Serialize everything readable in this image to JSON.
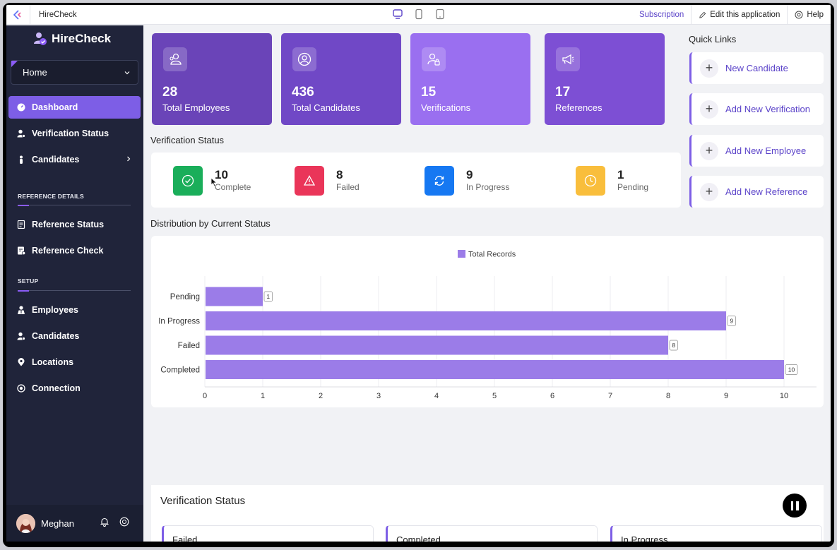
{
  "topbar": {
    "app_title": "HireCheck",
    "subscription": "Subscription",
    "edit": "Edit this application",
    "help": "Help"
  },
  "sidebar": {
    "brand": "HireCheck",
    "home": "Home",
    "items": {
      "dashboard": "Dashboard",
      "verification_status": "Verification Status",
      "candidates": "Candidates",
      "reference_status": "Reference Status",
      "reference_check": "Reference Check",
      "employees": "Employees",
      "candidates2": "Candidates",
      "locations": "Locations",
      "connection": "Connection"
    },
    "sections": {
      "reference": "REFERENCE DETAILS",
      "setup": "SETUP"
    },
    "user": "Meghan"
  },
  "cards": [
    {
      "value": "28",
      "label": "Total Employees",
      "color": "#6a44b8"
    },
    {
      "value": "436",
      "label": "Total Candidates",
      "color": "#7048c6"
    },
    {
      "value": "15",
      "label": "Verifications",
      "color": "#9a6ff0"
    },
    {
      "value": "17",
      "label": "References",
      "color": "#7d4fd4"
    }
  ],
  "verification_status": {
    "title": "Verification Status",
    "items": [
      {
        "value": "10",
        "label": "Complete",
        "color": "#1aae5a"
      },
      {
        "value": "8",
        "label": "Failed",
        "color": "#ea3559"
      },
      {
        "value": "9",
        "label": "In Progress",
        "color": "#1678f2"
      },
      {
        "value": "1",
        "label": "Pending",
        "color": "#f9be3c"
      }
    ]
  },
  "quick_links": {
    "title": "Quick Links",
    "items": [
      "New Candidate",
      "Add New Verification",
      "Add New Employee",
      "Add New Reference"
    ]
  },
  "distribution_title": "Distribution by Current Status",
  "chart_data": {
    "type": "bar",
    "orientation": "horizontal",
    "categories": [
      "Pending",
      "In Progress",
      "Failed",
      "Completed"
    ],
    "series": [
      {
        "name": "Total Records",
        "values": [
          1,
          9,
          8,
          10
        ],
        "color": "#9b7ce8"
      }
    ],
    "xlim": [
      0,
      10
    ],
    "xticks": [
      0,
      1,
      2,
      3,
      4,
      5,
      6,
      7,
      8,
      9,
      10
    ],
    "legend": "top-center",
    "grid": true
  },
  "bottom": {
    "title": "Verification Status",
    "tabs": [
      "Failed",
      "Completed",
      "In Progress"
    ]
  }
}
